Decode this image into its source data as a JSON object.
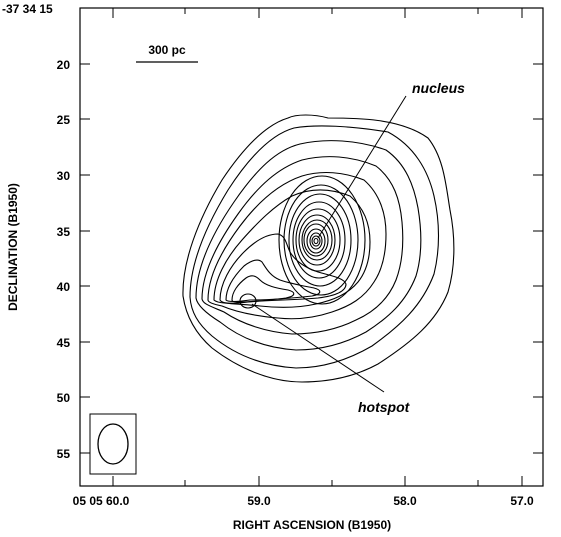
{
  "chart_data": {
    "type": "contour",
    "xlabel": "RIGHT ASCENSION (B1950)",
    "ylabel": "DECLINATION (B1950)",
    "x_tick_labels": [
      "05 05 60.0",
      "59.0",
      "58.0",
      "57.0"
    ],
    "y_tick_labels": [
      "-37 34 15",
      "20",
      "25",
      "30",
      "35",
      "40",
      "45",
      "50",
      "55"
    ],
    "xlim_seconds": [
      60.28,
      56.75
    ],
    "ylim_arcsec": [
      15,
      58
    ],
    "scale_bar_label": "300 pc",
    "annotations": [
      {
        "label": "nucleus",
        "ra_s": 58.52,
        "dec_arcsec": 36.2
      },
      {
        "label": "hotspot",
        "ra_s": 58.92,
        "dec_arcsec": 41.4
      }
    ],
    "beam": {
      "ra_s": 59.83,
      "dec_arcsec": 54.3
    }
  }
}
